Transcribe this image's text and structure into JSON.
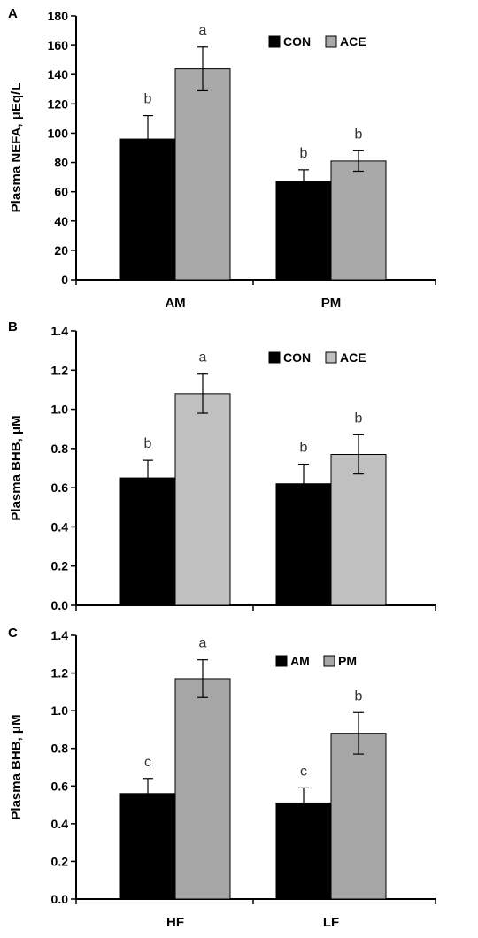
{
  "chart_data": [
    {
      "panel_label": "A",
      "type": "bar",
      "categories": [
        "AM",
        "PM"
      ],
      "ylabel": "Plasma NEFA, μEq/L",
      "ylim": [
        0,
        180
      ],
      "yticks": [
        "0",
        "20",
        "40",
        "60",
        "80",
        "100",
        "120",
        "140",
        "160",
        "180"
      ],
      "legend_position": "top-right",
      "grid": false,
      "series": [
        {
          "name": "CON",
          "color": "#000000",
          "values": [
            96,
            67
          ],
          "errors": [
            16,
            8
          ],
          "letters": [
            "b",
            "b"
          ]
        },
        {
          "name": "ACE",
          "color": "#a9a9a9",
          "values": [
            144,
            81
          ],
          "errors": [
            15,
            7
          ],
          "letters": [
            "a",
            "b"
          ]
        }
      ]
    },
    {
      "panel_label": "B",
      "type": "bar",
      "categories": [
        "",
        ""
      ],
      "ylabel": "Plasma BHB, μM",
      "ylim": [
        0,
        1.4
      ],
      "yticks": [
        "0.0",
        "0.2",
        "0.4",
        "0.6",
        "0.8",
        "1.0",
        "1.2",
        "1.4"
      ],
      "legend_position": "top-right",
      "grid": false,
      "series": [
        {
          "name": "CON",
          "color": "#000000",
          "values": [
            0.65,
            0.62
          ],
          "errors": [
            0.09,
            0.1
          ],
          "letters": [
            "b",
            "b"
          ]
        },
        {
          "name": "ACE",
          "color": "#c0c0c0",
          "values": [
            1.08,
            0.77
          ],
          "errors": [
            0.1,
            0.1
          ],
          "letters": [
            "a",
            "b"
          ]
        }
      ]
    },
    {
      "panel_label": "C",
      "type": "bar",
      "categories": [
        "HF",
        "LF"
      ],
      "ylabel": "Plasma BHB, μM",
      "ylim": [
        0,
        1.4
      ],
      "yticks": [
        "0.0",
        "0.2",
        "0.4",
        "0.6",
        "0.8",
        "1.0",
        "1.2",
        "1.4"
      ],
      "legend_position": "top-right",
      "grid": false,
      "series": [
        {
          "name": "AM",
          "color": "#000000",
          "values": [
            0.56,
            0.51
          ],
          "errors": [
            0.08,
            0.08
          ],
          "letters": [
            "c",
            "c"
          ]
        },
        {
          "name": "PM",
          "color": "#a6a6a6",
          "values": [
            1.17,
            0.88
          ],
          "errors": [
            0.1,
            0.11
          ],
          "letters": [
            "a",
            "b"
          ]
        }
      ]
    }
  ]
}
